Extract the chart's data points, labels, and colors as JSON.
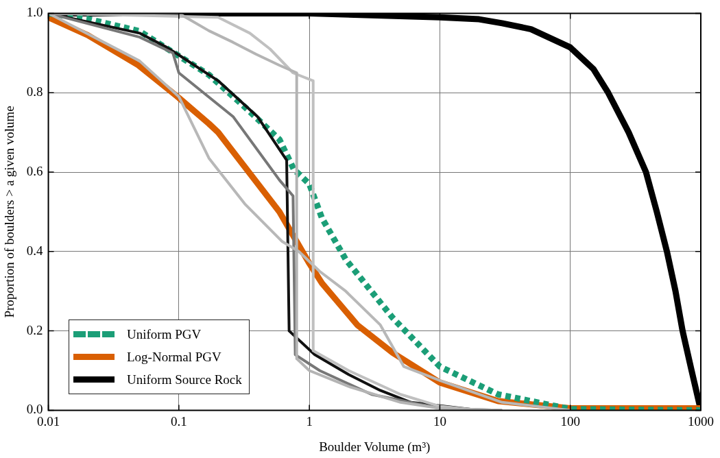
{
  "chart_data": {
    "type": "line",
    "xlabel": "Boulder Volume (m³)",
    "ylabel": "Proportion of boulders > a given volume",
    "log": "x",
    "grid": true,
    "legend": "bottom left",
    "marker": "none",
    "xlim": [
      0.01,
      1000
    ],
    "xticks": [
      0.01,
      0.1,
      1,
      10,
      100,
      1000
    ],
    "ylim": [
      0,
      1
    ],
    "yticks": [
      {
        "value": 0,
        "label": "0.0"
      },
      {
        "value": 0.2,
        "label": "0.2"
      },
      {
        "value": 0.4,
        "label": "0.4"
      },
      {
        "value": 0.6,
        "label": "0.6"
      },
      {
        "value": 0.8,
        "label": "0.8"
      },
      {
        "value": 1,
        "label": "1.0"
      }
    ],
    "series": [
      {
        "color": "#b4b4b4",
        "x": [
          0.01,
          0.1,
          0.17,
          0.26,
          0.39,
          0.59,
          0.8,
          0.8,
          1,
          2,
          5,
          10,
          30
        ],
        "values": [
          1,
          1,
          0.956,
          0.927,
          0.897,
          0.869,
          0.85,
          0.13,
          0.1,
          0.06,
          0.02,
          0.005,
          0
        ]
      },
      {
        "color": "#c0c0c0",
        "x": [
          0.01,
          0.2,
          0.35,
          0.5,
          0.75,
          1.07,
          1.07,
          2,
          5,
          10,
          20
        ],
        "values": [
          1,
          0.99,
          0.95,
          0.91,
          0.85,
          0.83,
          0.15,
          0.1,
          0.04,
          0.01,
          0
        ]
      },
      {
        "color": "#b8b8b8",
        "x": [
          0.01,
          0.05,
          0.1,
          0.17,
          0.32,
          0.62,
          0.83,
          1.2,
          1.9,
          3.5,
          5.3,
          10,
          30,
          100
        ],
        "values": [
          1,
          0.88,
          0.79,
          0.635,
          0.52,
          0.425,
          0.4,
          0.35,
          0.3,
          0.215,
          0.11,
          0.075,
          0.02,
          0
        ]
      },
      {
        "color": "#777777",
        "x": [
          0.01,
          0.05,
          0.09,
          0.1,
          0.26,
          0.59,
          0.75,
          0.78,
          1.2,
          3,
          10,
          30
        ],
        "values": [
          1,
          0.94,
          0.9,
          0.85,
          0.74,
          0.58,
          0.54,
          0.14,
          0.1,
          0.04,
          0.005,
          0
        ]
      },
      {
        "color": "#111111",
        "x": [
          0.01,
          0.05,
          0.08,
          0.1,
          0.2,
          0.4,
          0.67,
          0.7,
          1.1,
          2,
          3.5,
          6,
          20
        ],
        "values": [
          1,
          0.95,
          0.915,
          0.895,
          0.83,
          0.74,
          0.63,
          0.2,
          0.14,
          0.09,
          0.05,
          0.02,
          0
        ]
      },
      {
        "name": "Uniform PGV",
        "color": "#1b9e77",
        "line_style": "dashed",
        "x": [
          0.01,
          0.02,
          0.05,
          0.088,
          0.17,
          0.32,
          0.59,
          0.76,
          1,
          1.25,
          1.9,
          4.35,
          10,
          28,
          100,
          1000
        ],
        "values": [
          1,
          0.986,
          0.955,
          0.904,
          0.845,
          0.764,
          0.682,
          0.607,
          0.57,
          0.484,
          0.38,
          0.233,
          0.11,
          0.04,
          0.003,
          0
        ]
      },
      {
        "name": "Log-Normal PGV",
        "color": "#d95f02",
        "x": [
          0.01,
          0.02,
          0.049,
          0.1,
          0.17,
          0.2,
          0.59,
          1,
          1.25,
          2.33,
          4.35,
          10,
          28,
          100,
          1000
        ],
        "values": [
          0.99,
          0.945,
          0.869,
          0.787,
          0.722,
          0.7,
          0.5,
          0.37,
          0.32,
          0.215,
          0.145,
          0.07,
          0.023,
          0.005,
          0.005
        ]
      },
      {
        "name": "Uniform Source Rock",
        "color": "#000000",
        "x": [
          0.01,
          1,
          10,
          20,
          30,
          50,
          100,
          150,
          195,
          280,
          380,
          460,
          550,
          640,
          725,
          850,
          1000
        ],
        "values": [
          1,
          1,
          0.99,
          0.985,
          0.975,
          0.96,
          0.914,
          0.86,
          0.8,
          0.7,
          0.6,
          0.5,
          0.4,
          0.3,
          0.2,
          0.1,
          0
        ]
      }
    ]
  }
}
